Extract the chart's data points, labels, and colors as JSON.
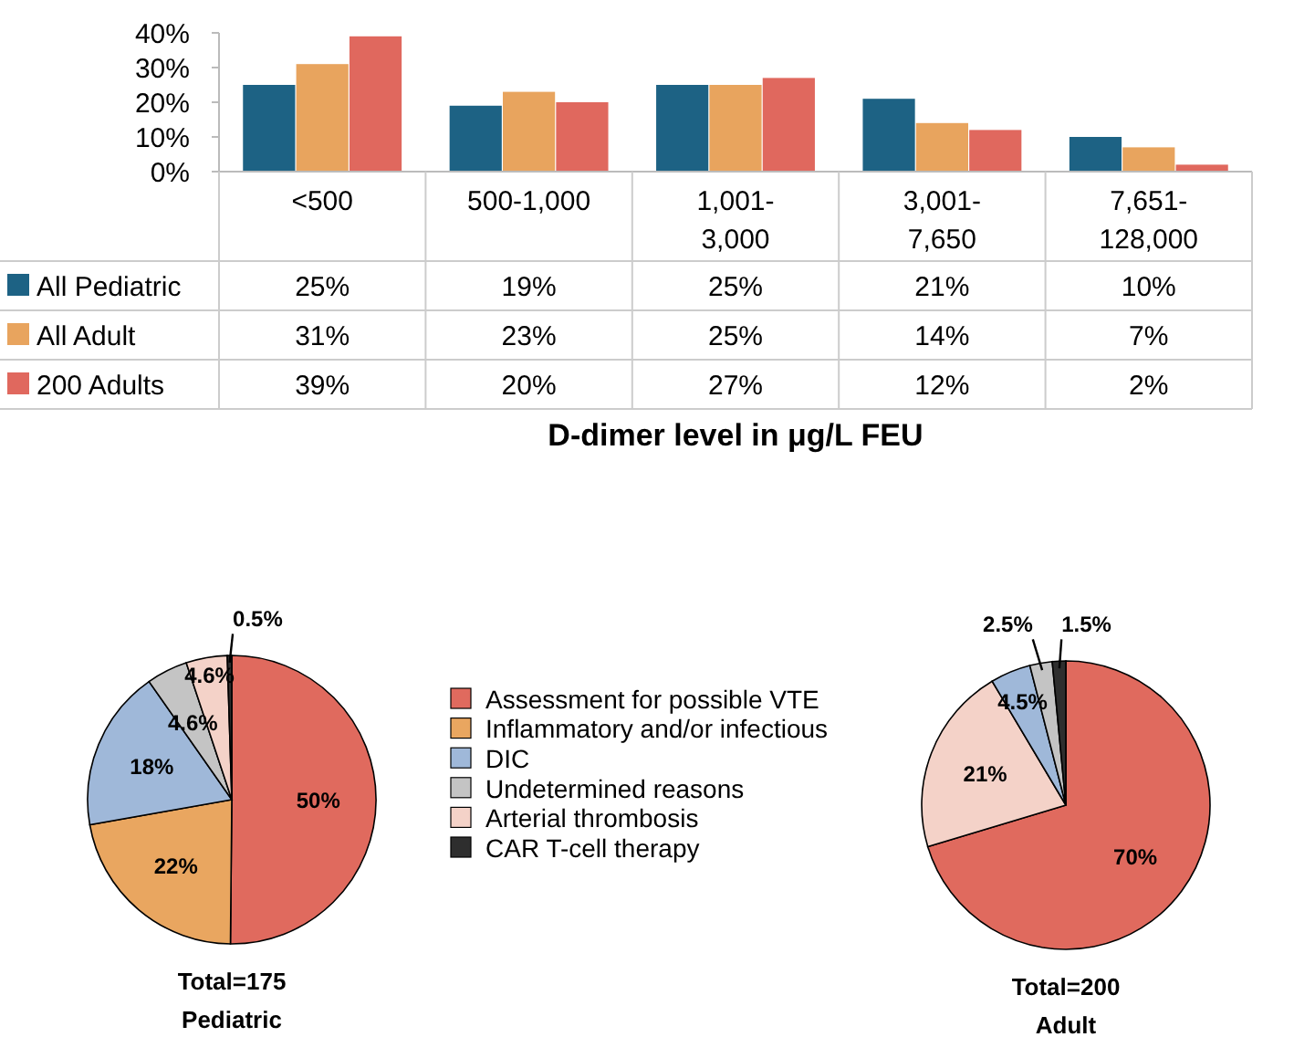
{
  "chart_data": [
    {
      "type": "bar",
      "categories": [
        "<500",
        "500-1,000",
        "1,001-3,000",
        "3,001-7,650",
        "7,651-128,000"
      ],
      "series": [
        {
          "name": "All Pediatric",
          "color": "#1d6284",
          "values": [
            25,
            19,
            25,
            21,
            10
          ]
        },
        {
          "name": "All Adult",
          "color": "#e8a45e",
          "values": [
            31,
            23,
            25,
            14,
            7
          ]
        },
        {
          "name": "200 Adults",
          "color": "#e0685e",
          "values": [
            39,
            20,
            27,
            12,
            2
          ]
        }
      ],
      "value_labels": [
        [
          "25%",
          "19%",
          "25%",
          "21%",
          "10%"
        ],
        [
          "31%",
          "23%",
          "25%",
          "14%",
          "7%"
        ],
        [
          "39%",
          "20%",
          "27%",
          "12%",
          "2%"
        ]
      ],
      "ylim": [
        0,
        40
      ],
      "yticks": [
        {
          "value": 0,
          "label": "0%"
        },
        {
          "value": 10,
          "label": "10%"
        },
        {
          "value": 20,
          "label": "20%"
        },
        {
          "value": 30,
          "label": "30%"
        },
        {
          "value": 40,
          "label": "40%"
        }
      ],
      "xlabel": "D-dimer level in μg/L FEU",
      "legend": "bottom",
      "grid": false
    },
    {
      "type": "pie",
      "title": "Pediatric",
      "annotations": [
        "Total=175"
      ],
      "categories": [
        "Assessment for possible VTE",
        "Inflammatory and/or infectious",
        "DIC",
        "Undetermined reasons",
        "Arterial thrombosis",
        "CAR T-cell therapy"
      ],
      "values": [
        50,
        22,
        18,
        4.6,
        4.6,
        0.5
      ],
      "value_labels": [
        "50%",
        "22%",
        "18%",
        "4.6%",
        "4.6%",
        "0.5%"
      ],
      "colors": [
        "#e06a5e",
        "#e9a660",
        "#9fb8d9",
        "#c4c4c4",
        "#f4d2c8",
        "#2e2e2e"
      ],
      "legend": "right"
    },
    {
      "type": "pie",
      "title": "Adult",
      "annotations": [
        "Total=200"
      ],
      "categories": [
        null,
        null,
        null,
        null,
        null
      ],
      "values": [
        70,
        21,
        4.5,
        2.5,
        1.5
      ],
      "value_labels": [
        "70%",
        "21%",
        "4.5%",
        "2.5%",
        "1.5%"
      ],
      "colors": [
        "#e06a5e",
        "#f4d2c8",
        "#9fb8d9",
        "#c4c4c4",
        "#2e2e2e"
      ],
      "legend": false
    }
  ]
}
